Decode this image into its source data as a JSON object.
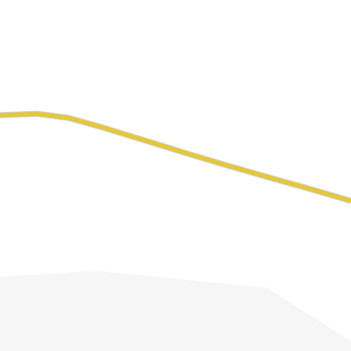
{
  "map": {
    "colors": {
      "land": "#ffffff",
      "landuse_area": "#f6f6f6",
      "road_fill": "#e3c83a",
      "road_casing": "#d6d2c4"
    },
    "features": [
      {
        "kind": "land-area",
        "name": "landuse-area"
      },
      {
        "kind": "road",
        "name": "major-road",
        "style": "primary"
      }
    ]
  }
}
